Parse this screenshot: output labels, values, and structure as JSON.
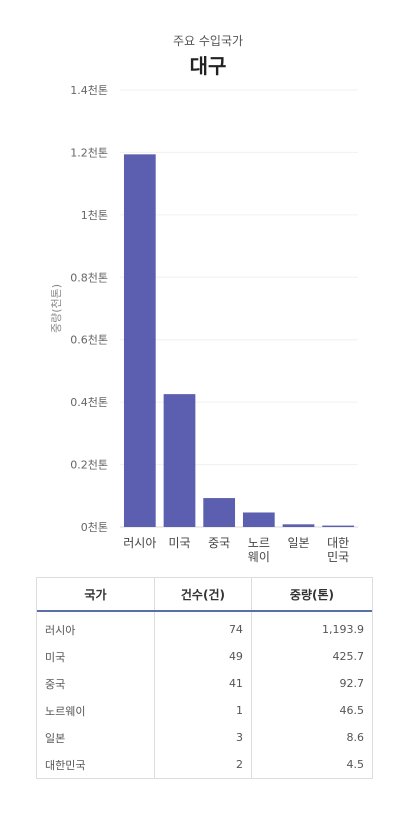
{
  "header": {
    "subtitle": "주요 수입국가",
    "title": "대구"
  },
  "chart_data": {
    "type": "bar",
    "ylabel": "중량(천톤)",
    "ylim": [
      0,
      1.4
    ],
    "yticks": [
      {
        "value": 0,
        "label": "0천톤"
      },
      {
        "value": 0.2,
        "label": "0.2천톤"
      },
      {
        "value": 0.4,
        "label": "0.4천톤"
      },
      {
        "value": 0.6,
        "label": "0.6천톤"
      },
      {
        "value": 0.8,
        "label": "0.8천톤"
      },
      {
        "value": 1.0,
        "label": "1천톤"
      },
      {
        "value": 1.2,
        "label": "1.2천톤"
      },
      {
        "value": 1.4,
        "label": "1.4천톤"
      }
    ],
    "categories": [
      [
        "러시아"
      ],
      [
        "미국"
      ],
      [
        "중국"
      ],
      [
        "노르",
        "웨이"
      ],
      [
        "일본"
      ],
      [
        "대한",
        "민국"
      ]
    ],
    "values": [
      1.1939,
      0.4257,
      0.0927,
      0.0465,
      0.0086,
      0.0045
    ],
    "bar_color": "#5c5fb0",
    "grid": true
  },
  "table": {
    "headers": [
      "국가",
      "건수(건)",
      "중량(톤)"
    ],
    "rows": [
      [
        "러시아",
        "74",
        "1,193.9"
      ],
      [
        "미국",
        "49",
        "425.7"
      ],
      [
        "중국",
        "41",
        "92.7"
      ],
      [
        "노르웨이",
        "1",
        "46.5"
      ],
      [
        "일본",
        "3",
        "8.6"
      ],
      [
        "대한민국",
        "2",
        "4.5"
      ]
    ]
  }
}
